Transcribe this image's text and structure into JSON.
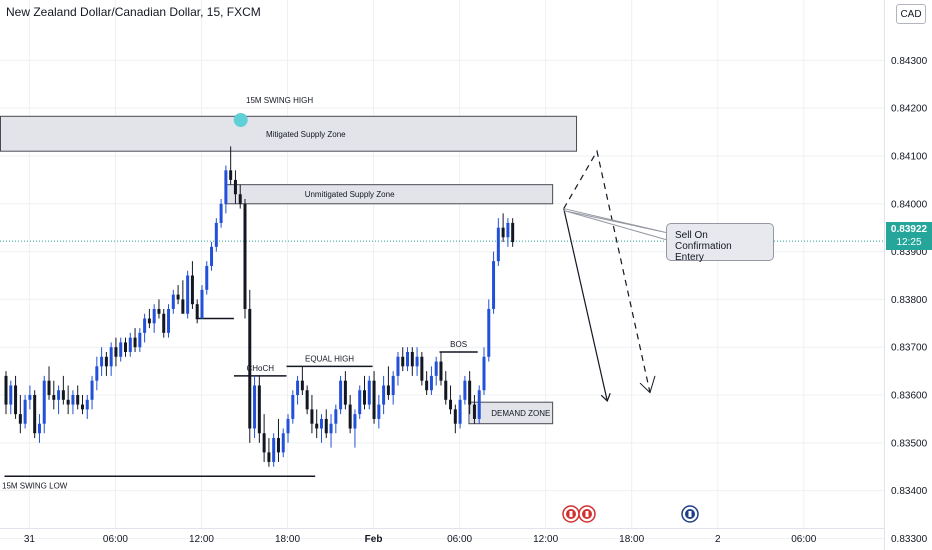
{
  "header": {
    "title": "New Zealand Dollar/Canadian Dollar, 15, FXCM",
    "currency_badge": "CAD"
  },
  "current_price": {
    "price": "0.83922",
    "countdown": "12:25",
    "color": "#26a69a"
  },
  "chart_data": {
    "type": "candlestick",
    "title": "New Zealand Dollar/Canadian Dollar, 15, FXCM",
    "y_ticks": [
      "0.84300",
      "0.84200",
      "0.84100",
      "0.84000",
      "0.83900",
      "0.83800",
      "0.83700",
      "0.83600",
      "0.83500",
      "0.83400",
      "0.83300"
    ],
    "x_ticks": [
      "31",
      "06:00",
      "12:00",
      "18:00",
      "Feb",
      "06:00",
      "12:00",
      "18:00",
      "2",
      "06:00"
    ],
    "ylim": [
      0.8328,
      0.8442
    ],
    "grid": true,
    "colors": {
      "bull": "#2250d8",
      "bear": "#131722",
      "zone_fill": "#e3e4ea",
      "zone_border": "#4a4a55"
    },
    "candles": [
      [
        0.8364,
        0.8365,
        0.8356,
        0.8358
      ],
      [
        0.8358,
        0.8363,
        0.8356,
        0.8362
      ],
      [
        0.8362,
        0.8364,
        0.8355,
        0.8356
      ],
      [
        0.8356,
        0.836,
        0.8352,
        0.8354
      ],
      [
        0.8354,
        0.836,
        0.8353,
        0.8359
      ],
      [
        0.8359,
        0.8362,
        0.8357,
        0.836
      ],
      [
        0.836,
        0.8361,
        0.8351,
        0.8352
      ],
      [
        0.8352,
        0.8356,
        0.835,
        0.8354
      ],
      [
        0.8354,
        0.8364,
        0.8352,
        0.8363
      ],
      [
        0.8363,
        0.8366,
        0.8359,
        0.836
      ],
      [
        0.836,
        0.8363,
        0.8357,
        0.8359
      ],
      [
        0.8359,
        0.8362,
        0.8356,
        0.8361
      ],
      [
        0.8361,
        0.8364,
        0.8358,
        0.8359
      ],
      [
        0.8359,
        0.8362,
        0.8356,
        0.8358
      ],
      [
        0.8358,
        0.8361,
        0.8356,
        0.836
      ],
      [
        0.836,
        0.8362,
        0.8357,
        0.8358
      ],
      [
        0.8358,
        0.836,
        0.8356,
        0.8357
      ],
      [
        0.8357,
        0.836,
        0.8355,
        0.8359
      ],
      [
        0.8359,
        0.8364,
        0.8357,
        0.8363
      ],
      [
        0.8363,
        0.8368,
        0.8361,
        0.8366
      ],
      [
        0.8366,
        0.837,
        0.8364,
        0.8368
      ],
      [
        0.8368,
        0.8369,
        0.8364,
        0.8366
      ],
      [
        0.8366,
        0.8371,
        0.8364,
        0.837
      ],
      [
        0.837,
        0.8372,
        0.8366,
        0.8368
      ],
      [
        0.8368,
        0.8372,
        0.8367,
        0.8371
      ],
      [
        0.8371,
        0.8372,
        0.8368,
        0.8369
      ],
      [
        0.8369,
        0.8373,
        0.8368,
        0.8372
      ],
      [
        0.8372,
        0.8374,
        0.8369,
        0.837
      ],
      [
        0.837,
        0.8374,
        0.8369,
        0.8373
      ],
      [
        0.8373,
        0.8377,
        0.8371,
        0.8376
      ],
      [
        0.8376,
        0.8378,
        0.8374,
        0.8375
      ],
      [
        0.8375,
        0.8379,
        0.8373,
        0.8378
      ],
      [
        0.8378,
        0.838,
        0.8376,
        0.8377
      ],
      [
        0.8377,
        0.8378,
        0.8372,
        0.8373
      ],
      [
        0.8373,
        0.8379,
        0.8372,
        0.8378
      ],
      [
        0.8378,
        0.8382,
        0.8377,
        0.8381
      ],
      [
        0.8381,
        0.8383,
        0.8379,
        0.838
      ],
      [
        0.838,
        0.8384,
        0.8378,
        0.8377
      ],
      [
        0.8377,
        0.8386,
        0.8376,
        0.8385
      ],
      [
        0.8385,
        0.8388,
        0.8378,
        0.8379
      ],
      [
        0.8379,
        0.838,
        0.8375,
        0.8376
      ],
      [
        0.8376,
        0.8383,
        0.8376,
        0.8382
      ],
      [
        0.8382,
        0.8388,
        0.8381,
        0.8387
      ],
      [
        0.8387,
        0.8392,
        0.8386,
        0.8391
      ],
      [
        0.8391,
        0.8397,
        0.839,
        0.8396
      ],
      [
        0.8396,
        0.8401,
        0.8395,
        0.84
      ],
      [
        0.84,
        0.8408,
        0.8398,
        0.8407
      ],
      [
        0.8407,
        0.8412,
        0.8404,
        0.8405
      ],
      [
        0.8405,
        0.8407,
        0.84,
        0.8402
      ],
      [
        0.8402,
        0.8404,
        0.8399,
        0.84
      ],
      [
        0.84,
        0.8401,
        0.8376,
        0.8378
      ],
      [
        0.8378,
        0.8382,
        0.835,
        0.8353
      ],
      [
        0.8353,
        0.8364,
        0.8351,
        0.8362
      ],
      [
        0.8362,
        0.8364,
        0.835,
        0.8352
      ],
      [
        0.8352,
        0.8356,
        0.8346,
        0.8348
      ],
      [
        0.8348,
        0.8351,
        0.8345,
        0.8346
      ],
      [
        0.8346,
        0.8352,
        0.8345,
        0.8351
      ],
      [
        0.8351,
        0.8355,
        0.8346,
        0.8348
      ],
      [
        0.8348,
        0.8353,
        0.8347,
        0.8352
      ],
      [
        0.8352,
        0.8356,
        0.835,
        0.8355
      ],
      [
        0.8355,
        0.8361,
        0.8354,
        0.836
      ],
      [
        0.836,
        0.8364,
        0.8358,
        0.8363
      ],
      [
        0.8363,
        0.8366,
        0.836,
        0.8361
      ],
      [
        0.8361,
        0.8362,
        0.8356,
        0.8357
      ],
      [
        0.8357,
        0.836,
        0.8352,
        0.8354
      ],
      [
        0.8354,
        0.8357,
        0.8351,
        0.8353
      ],
      [
        0.8353,
        0.8356,
        0.835,
        0.8355
      ],
      [
        0.8355,
        0.8357,
        0.8351,
        0.8352
      ],
      [
        0.8352,
        0.8356,
        0.8349,
        0.8354
      ],
      [
        0.8354,
        0.8358,
        0.8352,
        0.8357
      ],
      [
        0.8357,
        0.8364,
        0.8356,
        0.8363
      ],
      [
        0.8363,
        0.8365,
        0.8357,
        0.8358
      ],
      [
        0.8358,
        0.836,
        0.8352,
        0.8353
      ],
      [
        0.8353,
        0.8357,
        0.8349,
        0.8356
      ],
      [
        0.8356,
        0.8362,
        0.8355,
        0.8361
      ],
      [
        0.8361,
        0.8364,
        0.8357,
        0.8358
      ],
      [
        0.8358,
        0.8364,
        0.8357,
        0.8363
      ],
      [
        0.8363,
        0.8365,
        0.8354,
        0.8355
      ],
      [
        0.8355,
        0.836,
        0.8353,
        0.8358
      ],
      [
        0.8358,
        0.8364,
        0.8356,
        0.8362
      ],
      [
        0.8362,
        0.8366,
        0.8359,
        0.836
      ],
      [
        0.836,
        0.8365,
        0.8358,
        0.8364
      ],
      [
        0.8364,
        0.8369,
        0.8362,
        0.8368
      ],
      [
        0.8368,
        0.837,
        0.8365,
        0.8366
      ],
      [
        0.8366,
        0.837,
        0.8365,
        0.8369
      ],
      [
        0.8369,
        0.837,
        0.8364,
        0.8366
      ],
      [
        0.8366,
        0.837,
        0.8364,
        0.8368
      ],
      [
        0.8368,
        0.8369,
        0.8362,
        0.8363
      ],
      [
        0.8363,
        0.8365,
        0.836,
        0.8361
      ],
      [
        0.8361,
        0.8366,
        0.836,
        0.8364
      ],
      [
        0.8364,
        0.8368,
        0.8362,
        0.8367
      ],
      [
        0.8367,
        0.8369,
        0.8362,
        0.8363
      ],
      [
        0.8363,
        0.8365,
        0.8358,
        0.8359
      ],
      [
        0.8359,
        0.8362,
        0.8356,
        0.8357
      ],
      [
        0.8357,
        0.8358,
        0.8352,
        0.8354
      ],
      [
        0.8354,
        0.836,
        0.8353,
        0.8359
      ],
      [
        0.8359,
        0.8364,
        0.8358,
        0.8363
      ],
      [
        0.8363,
        0.8365,
        0.8356,
        0.8358
      ],
      [
        0.8358,
        0.836,
        0.8354,
        0.8355
      ],
      [
        0.8355,
        0.8362,
        0.8354,
        0.8361
      ],
      [
        0.8361,
        0.837,
        0.836,
        0.8368
      ],
      [
        0.8368,
        0.838,
        0.8367,
        0.8378
      ],
      [
        0.8378,
        0.839,
        0.8377,
        0.8388
      ],
      [
        0.8388,
        0.8397,
        0.8387,
        0.8395
      ],
      [
        0.8395,
        0.8398,
        0.8392,
        0.8393
      ],
      [
        0.8393,
        0.8397,
        0.8391,
        0.8396
      ],
      [
        0.8396,
        0.8397,
        0.8391,
        0.8392
      ]
    ],
    "zones": [
      {
        "label": "Mitigated Supply Zone",
        "top": 0.84183,
        "bottom": 0.8411,
        "x_start": 0,
        "x_end": 118
      },
      {
        "label": "Unmitigated Supply Zone",
        "top": 0.8404,
        "bottom": 0.84,
        "x_start": 47,
        "x_end": 113
      },
      {
        "label": "DEMAND ZONE",
        "top": 0.83585,
        "bottom": 0.8354,
        "x_start": 98,
        "x_end": 113
      }
    ],
    "levels": [
      {
        "label": "15M  SWING HIGH",
        "price": 0.84183,
        "x_start": 0,
        "x_end": 118
      },
      {
        "label": "15M  SWING LOW",
        "price": 0.8343,
        "x_start": 0,
        "x_end": 65
      },
      {
        "label": "",
        "price": 0.8376,
        "x_start": 40,
        "x_end": 48
      },
      {
        "label": "CHoCH",
        "price": 0.8364,
        "x_start": 48,
        "x_end": 59
      },
      {
        "label": "EQUAL HIGH",
        "price": 0.8366,
        "x_start": 59,
        "x_end": 77
      },
      {
        "label": "BOS",
        "price": 0.8369,
        "x_start": 91,
        "x_end": 99
      }
    ],
    "annotation": "Sell On Confirmation\nEntery"
  }
}
